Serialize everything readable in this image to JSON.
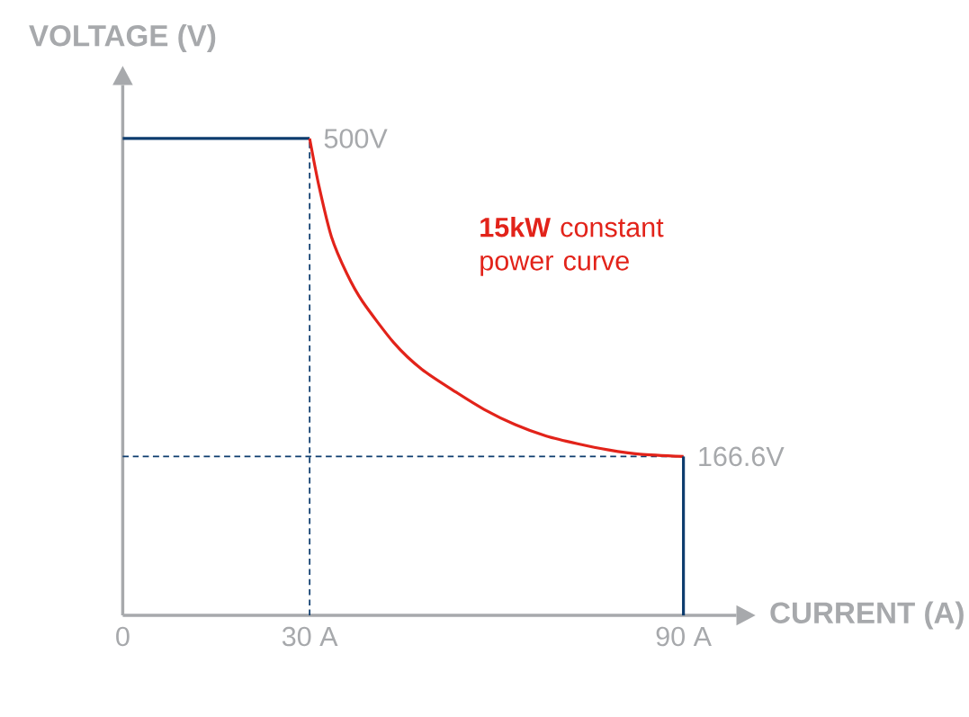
{
  "chart_data": {
    "type": "line",
    "xlabel": "CURRENT (A)",
    "ylabel": "VOLTAGE (V)",
    "series": [
      {
        "color": "#0d3c6e",
        "line_style": "dashed",
        "x": [
          30,
          30
        ],
        "values": [
          0,
          500
        ]
      },
      {
        "color": "#0d3c6e",
        "line_style": "dashed",
        "x": [
          0,
          90
        ],
        "values": [
          166.6,
          166.6
        ]
      },
      {
        "color": "#0d3c6e",
        "x": [
          0,
          30
        ],
        "values": [
          500,
          500
        ]
      },
      {
        "color": "#e2231a",
        "x": [
          30,
          31.5,
          33.5,
          36,
          38.5,
          43.5,
          48,
          53.5,
          58,
          63,
          68,
          73,
          78,
          83,
          90
        ],
        "values": [
          500,
          450,
          397,
          358,
          329,
          286,
          258,
          234,
          216,
          200,
          188,
          180,
          173.5,
          169,
          166.6
        ],
        "value_labels": [
          "500V",
          null,
          null,
          null,
          null,
          null,
          null,
          null,
          null,
          null,
          null,
          null,
          null,
          null,
          "166.6V"
        ]
      },
      {
        "color": "#0d3c6e",
        "x": [
          90,
          90
        ],
        "values": [
          166.6,
          0
        ]
      }
    ],
    "annotations": [
      "**15kW** constant power curve"
    ],
    "xlim": [
      0,
      98.5
    ],
    "ylim": [
      0,
      556
    ],
    "xticks": [
      0,
      {
        "value": 30,
        "label": "30 A"
      },
      {
        "value": 90,
        "label": "90 A"
      }
    ],
    "tick_labels": "x",
    "grid": false,
    "marker": "none",
    "line_style": "solid"
  }
}
